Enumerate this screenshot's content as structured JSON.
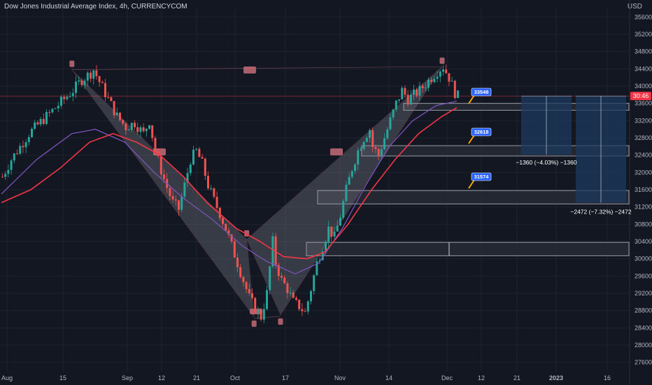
{
  "header": {
    "title": "Dow Jones Industrial Average Index, 4h, CURRENCYCOM",
    "currency": "USD"
  },
  "colors": {
    "background": "#131722",
    "grid": "#1f2330",
    "up": "#26a69a",
    "down": "#ef5350",
    "ma_fast": "#7e57c2",
    "ma_slow": "#f23645",
    "pattern_fill": "#9598a1",
    "zone_fill": "#1e3a5f",
    "tag_blue": "#2962ff",
    "current_price": "#f23645"
  },
  "chart_data": {
    "type": "candlestick",
    "ylim": [
      27400,
      35800
    ],
    "y_ticks": [
      27600,
      28000,
      28400,
      28800,
      29200,
      29600,
      30000,
      30400,
      30800,
      31200,
      31600,
      32000,
      32400,
      32800,
      33200,
      33600,
      34000,
      34400,
      34800,
      35200,
      35600
    ],
    "x_ticks": [
      "Aug",
      "15",
      "Sep",
      "12",
      "21",
      "Oct",
      "17",
      "Nov",
      "14",
      "Dec",
      "12",
      "21",
      "2023",
      "16"
    ],
    "current_price_label": "30:46",
    "current_price_value": 33770,
    "price_path": [
      [
        0,
        31900
      ],
      [
        3,
        32300
      ],
      [
        6,
        32600
      ],
      [
        9,
        32900
      ],
      [
        12,
        33100
      ],
      [
        15,
        33300
      ],
      [
        18,
        33500
      ],
      [
        21,
        33700
      ],
      [
        24,
        33900
      ],
      [
        27,
        34150
      ],
      [
        30,
        34300
      ],
      [
        31,
        34380
      ],
      [
        33,
        34100
      ],
      [
        36,
        33700
      ],
      [
        39,
        33300
      ],
      [
        42,
        33050
      ],
      [
        45,
        33150
      ],
      [
        48,
        32900
      ],
      [
        50,
        33200
      ],
      [
        52,
        32500
      ],
      [
        54,
        32050
      ],
      [
        56,
        31650
      ],
      [
        58,
        31300
      ],
      [
        60,
        31150
      ],
      [
        62,
        31700
      ],
      [
        64,
        32300
      ],
      [
        66,
        32500
      ],
      [
        68,
        32200
      ],
      [
        70,
        31700
      ],
      [
        72,
        31350
      ],
      [
        74,
        31050
      ],
      [
        76,
        30700
      ],
      [
        78,
        30300
      ],
      [
        80,
        29900
      ],
      [
        82,
        29500
      ],
      [
        84,
        29100
      ],
      [
        86,
        28850
      ],
      [
        88,
        28650
      ],
      [
        90,
        29200
      ],
      [
        91,
        29800
      ],
      [
        92,
        30400
      ],
      [
        93,
        29900
      ],
      [
        95,
        29500
      ],
      [
        97,
        29300
      ],
      [
        99,
        29000
      ],
      [
        101,
        28900
      ],
      [
        103,
        28750
      ],
      [
        105,
        29300
      ],
      [
        107,
        29900
      ],
      [
        109,
        30300
      ],
      [
        111,
        30700
      ],
      [
        113,
        30500
      ],
      [
        115,
        31000
      ],
      [
        117,
        31600
      ],
      [
        119,
        32100
      ],
      [
        121,
        32500
      ],
      [
        123,
        32800
      ],
      [
        125,
        33000
      ],
      [
        126,
        32600
      ],
      [
        128,
        32400
      ],
      [
        130,
        32800
      ],
      [
        132,
        33200
      ],
      [
        134,
        33600
      ],
      [
        136,
        33900
      ],
      [
        138,
        33700
      ],
      [
        140,
        33800
      ],
      [
        142,
        33900
      ],
      [
        144,
        34050
      ],
      [
        146,
        34200
      ],
      [
        148,
        34350
      ],
      [
        150,
        34450
      ],
      [
        152,
        34200
      ],
      [
        154,
        33850
      ],
      [
        155,
        33770
      ]
    ],
    "ma_fast": [
      [
        0,
        31500
      ],
      [
        12,
        32300
      ],
      [
        24,
        32900
      ],
      [
        32,
        33000
      ],
      [
        42,
        32700
      ],
      [
        52,
        32000
      ],
      [
        62,
        31400
      ],
      [
        72,
        30900
      ],
      [
        82,
        30300
      ],
      [
        90,
        29950
      ],
      [
        100,
        29650
      ],
      [
        108,
        29900
      ],
      [
        116,
        30700
      ],
      [
        124,
        31700
      ],
      [
        132,
        32600
      ],
      [
        140,
        33200
      ],
      [
        148,
        33550
      ],
      [
        155,
        33650
      ]
    ],
    "ma_slow": [
      [
        0,
        31300
      ],
      [
        10,
        31600
      ],
      [
        20,
        32100
      ],
      [
        30,
        32700
      ],
      [
        38,
        32900
      ],
      [
        46,
        32700
      ],
      [
        54,
        32400
      ],
      [
        62,
        31900
      ],
      [
        70,
        31300
      ],
      [
        80,
        30700
      ],
      [
        88,
        30400
      ],
      [
        96,
        30050
      ],
      [
        104,
        30000
      ],
      [
        110,
        30150
      ],
      [
        118,
        30800
      ],
      [
        126,
        31600
      ],
      [
        134,
        32300
      ],
      [
        142,
        32900
      ],
      [
        150,
        33300
      ],
      [
        155,
        33500
      ]
    ],
    "horizontal_levels": [
      {
        "label": "33548",
        "value": 33548
      },
      {
        "label": "32618",
        "value": 32618
      },
      {
        "label": "31574",
        "value": 31574
      }
    ],
    "projections": [
      {
        "label": "−1360 (−4.03%) −1360",
        "change": -1360,
        "percent": -4.03
      },
      {
        "label": "−2472 (−7.32%) −2472",
        "change": -2472,
        "percent": -7.32
      }
    ]
  }
}
